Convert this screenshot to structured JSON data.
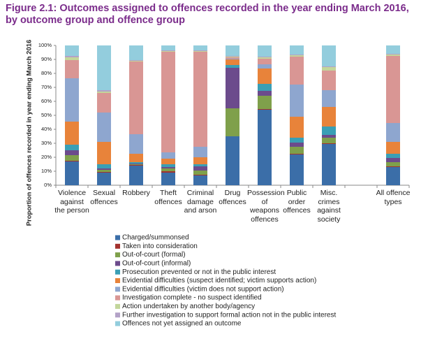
{
  "chart_data": {
    "type": "stacked-bar",
    "title": "Figure 2.1: Outcomes assigned to offences recorded in the year ending March 2016, by outcome group and offence group",
    "y_label": "Proportion of offences recorded in year ending March 2016",
    "categories": [
      "Violence against the person",
      "Sexual offences",
      "Robbery",
      "Theft offences",
      "Criminal damage and arson",
      "Drug offences",
      "Possession of weapons offences",
      "Public order offences",
      "Misc. crimes against society",
      null,
      "All offence types"
    ],
    "series": [
      {
        "name": "Charged/summonsed",
        "color": "#3b6ea8",
        "values": [
          17,
          9,
          14,
          9,
          7,
          35,
          54,
          22,
          29.5,
          null,
          13
        ]
      },
      {
        "name": "Taken into consideration",
        "color": "#a3322e",
        "values": [
          0.5,
          0.5,
          0.5,
          1,
          0.5,
          0,
          0.5,
          0.5,
          0.5,
          null,
          0.5
        ]
      },
      {
        "name": "Out-of-court (formal)",
        "color": "#7fa04b",
        "values": [
          4,
          1.5,
          0.5,
          2,
          3,
          20,
          9.5,
          5,
          4,
          null,
          3
        ]
      },
      {
        "name": "Out-of-court (informal)",
        "color": "#6c4b8c",
        "values": [
          3.5,
          1,
          0.5,
          1,
          3,
          29,
          3.5,
          3,
          2,
          null,
          3
        ]
      },
      {
        "name": "Prosecution prevented or not in the public interest",
        "color": "#3a9fb5",
        "values": [
          4,
          3,
          1,
          2,
          1.5,
          2,
          5,
          3.5,
          6,
          null,
          3
        ]
      },
      {
        "name": "Evidential difficulties (suspect identified; victim supports action)",
        "color": "#e8833a",
        "values": [
          16.5,
          16,
          6,
          4,
          5,
          4,
          11,
          15,
          14,
          null,
          8.5
        ]
      },
      {
        "name": "Evidential difficulties (victim does not support action)",
        "color": "#8ea6cf",
        "values": [
          31,
          21,
          14,
          4.5,
          7.5,
          0.5,
          3,
          23,
          12,
          null,
          13.5
        ]
      },
      {
        "name": "Investigation complete - no suspect identified",
        "color": "#d99694",
        "values": [
          13,
          14,
          52,
          72,
          68,
          1,
          4,
          20,
          14,
          null,
          48
        ]
      },
      {
        "name": "Action undertaken by another body/agency",
        "color": "#c3d69b",
        "values": [
          2,
          1,
          0.5,
          0.5,
          0.5,
          0.5,
          1,
          1,
          2.5,
          null,
          1
        ]
      },
      {
        "name": "Further investigation to support formal action not in the public interest",
        "color": "#b3a2c7",
        "values": [
          1,
          1,
          0.5,
          0.5,
          0.5,
          0.5,
          0.5,
          0.5,
          0.5,
          null,
          0.5
        ]
      },
      {
        "name": "Offences not yet assigned an outcome",
        "color": "#93cddd",
        "values": [
          7.5,
          32,
          10.5,
          3.5,
          3.5,
          7.5,
          8,
          6.5,
          15,
          null,
          6
        ]
      }
    ],
    "ylim": [
      0,
      100
    ],
    "yticks": [
      {
        "value": 0,
        "label": "0%"
      },
      {
        "value": 10,
        "label": "10%"
      },
      {
        "value": 20,
        "label": "20%"
      },
      {
        "value": 30,
        "label": "30%"
      },
      {
        "value": 40,
        "label": "40%"
      },
      {
        "value": 50,
        "label": "50%"
      },
      {
        "value": 60,
        "label": "60%"
      },
      {
        "value": 70,
        "label": "70%"
      },
      {
        "value": 80,
        "label": "80%"
      },
      {
        "value": 90,
        "label": "90%"
      },
      {
        "value": 100,
        "label": "100%"
      }
    ],
    "grid": false
  }
}
